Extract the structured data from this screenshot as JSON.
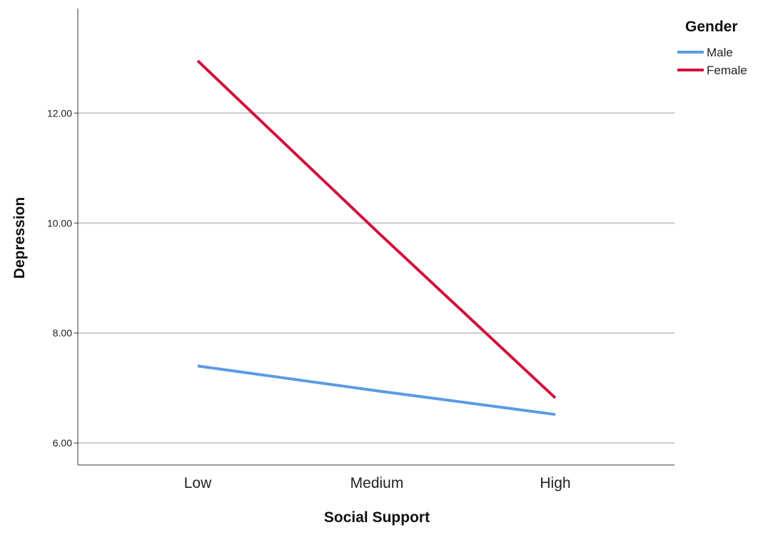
{
  "chart_data": {
    "type": "line",
    "title": "",
    "xlabel": "Social Support",
    "ylabel": "Depression",
    "categories": [
      "Low",
      "Medium",
      "High"
    ],
    "ylim": [
      5.6,
      13.9
    ],
    "yticks": [
      "6.00",
      "8.00",
      "10.00",
      "12.00"
    ],
    "grid": true,
    "legend": {
      "title": "Gender",
      "placement": "top-right"
    },
    "series": [
      {
        "name": "Male",
        "color": "#5b9be5",
        "values": [
          7.4,
          6.95,
          6.52
        ]
      },
      {
        "name": "Female",
        "color": "#d0103f",
        "values": [
          12.95,
          9.85,
          6.82
        ]
      }
    ]
  }
}
